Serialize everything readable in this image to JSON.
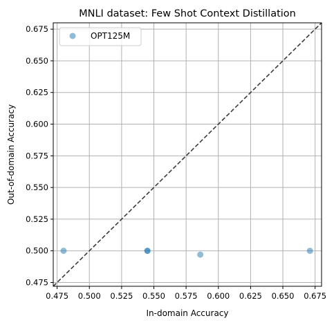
{
  "chart_data": {
    "type": "scatter",
    "title": "MNLI dataset: Few Shot Context Distillation",
    "xlabel": "In-domain Accuracy",
    "ylabel": "Out-of-domain Accuracy",
    "xlim": [
      0.472,
      0.68
    ],
    "ylim": [
      0.472,
      0.68
    ],
    "xticks": [
      0.475,
      0.5,
      0.525,
      0.55,
      0.575,
      0.6,
      0.625,
      0.65,
      0.675
    ],
    "yticks": [
      0.475,
      0.5,
      0.525,
      0.55,
      0.575,
      0.6,
      0.625,
      0.65,
      0.675
    ],
    "xtick_labels": [
      "0.475",
      "0.500",
      "0.525",
      "0.550",
      "0.575",
      "0.600",
      "0.625",
      "0.650",
      "0.675"
    ],
    "ytick_labels": [
      "0.475",
      "0.500",
      "0.525",
      "0.550",
      "0.575",
      "0.600",
      "0.625",
      "0.650",
      "0.675"
    ],
    "grid": true,
    "legend_position": "top-left",
    "diagonal_reference_line": true,
    "series": [
      {
        "name": "OPT125M",
        "color": "#1f77b4",
        "points": [
          {
            "x": 0.48,
            "y": 0.5
          },
          {
            "x": 0.545,
            "y": 0.5
          },
          {
            "x": 0.545,
            "y": 0.5
          },
          {
            "x": 0.586,
            "y": 0.497
          },
          {
            "x": 0.671,
            "y": 0.5
          }
        ]
      }
    ]
  }
}
